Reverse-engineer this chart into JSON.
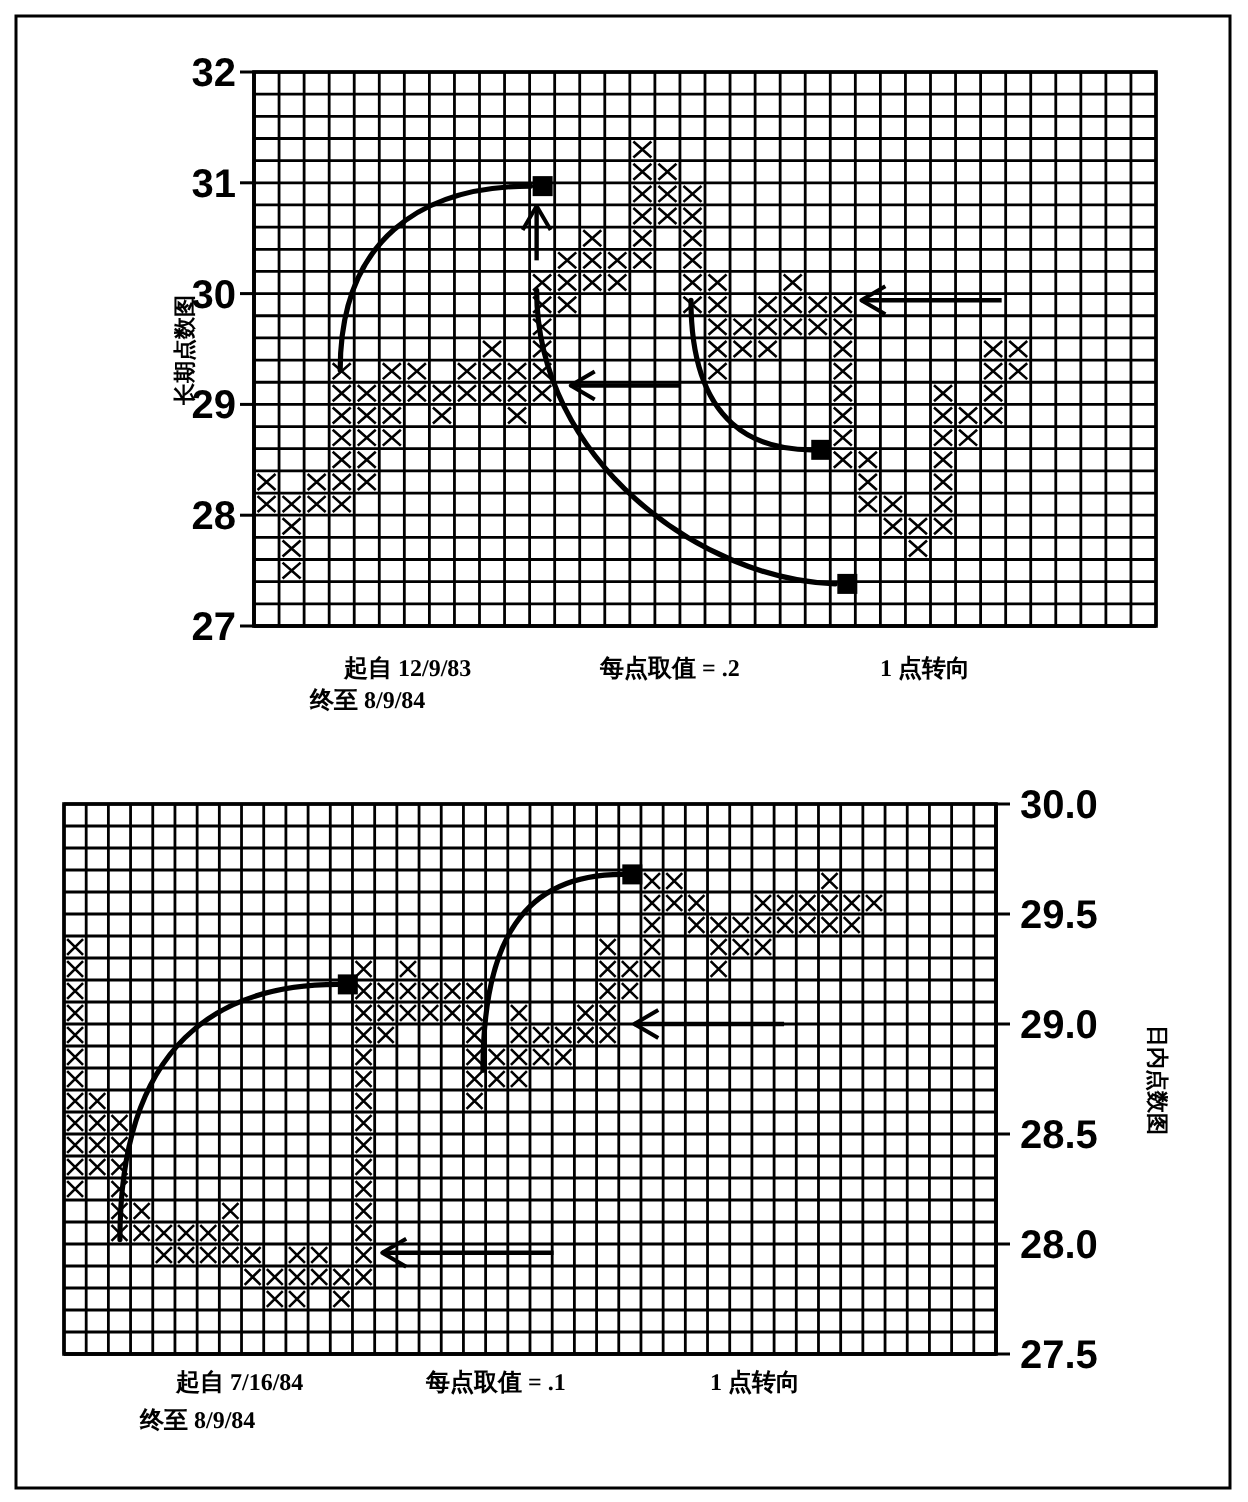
{
  "chart_data": [
    {
      "type": "scatter",
      "ylabel": "长期点数图",
      "annotations": [
        "起自 12/9/83",
        "终至 8/9/84",
        "每点取值 =  .2",
        "1 点转向"
      ],
      "marker": "cross",
      "grid": true,
      "tick_labels": "y",
      "ylim": [
        27,
        32
      ],
      "yticks": [
        27,
        28,
        29,
        30,
        31,
        32
      ],
      "categories": [
        null,
        null,
        null,
        null,
        null,
        null,
        null,
        null,
        null,
        null,
        null,
        null,
        null,
        null,
        null,
        null,
        null,
        null,
        null,
        null,
        null,
        null,
        null,
        null,
        null,
        null,
        null,
        null,
        null,
        null,
        null,
        null,
        null,
        null,
        null,
        null
      ],
      "series": [
        {
          "color": "#000000",
          "values": [
            28.3,
            28.1,
            28.3,
            29.3,
            29.1,
            29.3,
            29.3,
            29.1,
            29.3,
            29.5,
            29.3,
            30.1,
            30.3,
            30.5,
            30.3,
            31.3,
            31.1,
            30.9,
            30.1,
            29.7,
            29.9,
            30.1,
            29.9,
            29.9,
            28.5,
            28.1,
            27.9,
            29.1,
            28.9,
            29.5,
            29.5,
            null,
            null,
            null,
            null,
            null
          ]
        },
        {
          "color": "#000000",
          "values": [
            28.1,
            27.9,
            28.1,
            29.1,
            28.9,
            29.1,
            29.1,
            28.9,
            29.1,
            29.3,
            29.1,
            29.9,
            30.1,
            30.3,
            30.1,
            31.1,
            30.9,
            30.7,
            29.9,
            29.5,
            29.7,
            29.9,
            29.7,
            29.7,
            28.3,
            27.9,
            27.7,
            28.9,
            28.7,
            29.3,
            29.3,
            null,
            null,
            null,
            null,
            null
          ]
        },
        {
          "color": "#000000",
          "values": [
            null,
            27.7,
            null,
            28.9,
            28.7,
            28.9,
            null,
            null,
            null,
            29.1,
            28.9,
            29.7,
            29.9,
            30.1,
            null,
            30.9,
            30.7,
            30.5,
            29.7,
            null,
            29.5,
            29.7,
            null,
            29.5,
            28.1,
            null,
            null,
            28.7,
            null,
            29.1,
            null,
            null,
            null,
            null,
            null,
            null
          ]
        },
        {
          "color": "#000000",
          "values": [
            null,
            27.5,
            null,
            28.7,
            28.5,
            28.7,
            null,
            null,
            null,
            null,
            null,
            29.5,
            null,
            null,
            null,
            30.7,
            null,
            30.3,
            29.5,
            null,
            null,
            null,
            null,
            29.3,
            null,
            null,
            null,
            28.5,
            null,
            28.9,
            null,
            null,
            null,
            null,
            null,
            null
          ]
        },
        {
          "color": "#000000",
          "values": [
            null,
            null,
            null,
            28.5,
            28.3,
            null,
            null,
            null,
            null,
            null,
            null,
            29.3,
            null,
            null,
            null,
            30.5,
            null,
            30.1,
            29.3,
            null,
            null,
            null,
            null,
            29.1,
            null,
            null,
            null,
            28.3,
            null,
            null,
            null,
            null,
            null,
            null,
            null,
            null
          ]
        },
        {
          "color": "#000000",
          "values": [
            null,
            null,
            null,
            28.3,
            null,
            null,
            null,
            null,
            null,
            null,
            null,
            29.1,
            null,
            null,
            null,
            30.3,
            null,
            29.9,
            null,
            null,
            null,
            null,
            null,
            28.9,
            null,
            null,
            null,
            28.1,
            null,
            null,
            null,
            null,
            null,
            null,
            null,
            null
          ]
        },
        {
          "color": "#000000",
          "values": [
            null,
            null,
            null,
            28.1,
            null,
            null,
            null,
            null,
            null,
            null,
            null,
            null,
            null,
            null,
            null,
            null,
            null,
            null,
            null,
            null,
            null,
            null,
            null,
            28.7,
            null,
            null,
            null,
            27.9,
            null,
            null,
            null,
            null,
            null,
            null,
            null,
            null
          ]
        },
        {
          "color": "#000000",
          "values": [
            null,
            null,
            null,
            null,
            null,
            null,
            null,
            null,
            null,
            null,
            null,
            null,
            null,
            null,
            null,
            null,
            null,
            null,
            null,
            null,
            null,
            null,
            null,
            28.5,
            null,
            null,
            null,
            null,
            null,
            null,
            null,
            null,
            null,
            null,
            null,
            null
          ]
        }
      ]
    },
    {
      "type": "scatter",
      "ylabel": "日内点数图",
      "annotations": [
        "起自 7/16/84",
        "终至 8/9/84",
        "每点取值 = .1",
        "1 点转向"
      ],
      "marker": "cross",
      "grid": true,
      "tick_labels": "y",
      "ylim": [
        27.5,
        30
      ],
      "yticks": [
        {
          "value": 27.5,
          "label": "27.5"
        },
        {
          "value": 28,
          "label": "28.0"
        },
        {
          "value": 28.5,
          "label": "28.5"
        },
        {
          "value": 29,
          "label": "29.0"
        },
        {
          "value": 29.5,
          "label": "29.5"
        },
        {
          "value": 30,
          "label": "30.0"
        }
      ],
      "categories": [
        null,
        null,
        null,
        null,
        null,
        null,
        null,
        null,
        null,
        null,
        null,
        null,
        null,
        null,
        null,
        null,
        null,
        null,
        null,
        null,
        null,
        null,
        null,
        null,
        null,
        null,
        null,
        null,
        null,
        null,
        null,
        null,
        null,
        null,
        null,
        null,
        null,
        null,
        null,
        null,
        null,
        null
      ],
      "series": [
        {
          "color": "#000000",
          "values": [
            29.35,
            28.65,
            28.55,
            28.15,
            28.05,
            28.05,
            28.05,
            28.15,
            27.95,
            27.85,
            27.95,
            27.95,
            27.85,
            29.25,
            29.15,
            29.25,
            29.15,
            29.15,
            29.15,
            28.85,
            29.05,
            28.95,
            28.95,
            29.05,
            29.35,
            29.25,
            29.65,
            29.65,
            29.55,
            29.45,
            29.45,
            29.55,
            29.55,
            29.55,
            29.65,
            29.55,
            29.55,
            null,
            null,
            null,
            null,
            null
          ]
        },
        {
          "color": "#000000",
          "values": [
            29.25,
            28.55,
            28.45,
            28.05,
            27.95,
            27.95,
            27.95,
            28.05,
            27.85,
            27.75,
            27.85,
            27.85,
            27.75,
            29.15,
            29.05,
            29.15,
            29.05,
            29.05,
            29.05,
            28.75,
            28.95,
            28.85,
            28.85,
            28.95,
            29.25,
            29.15,
            29.55,
            29.55,
            29.45,
            29.35,
            29.35,
            29.45,
            29.45,
            29.45,
            29.55,
            29.45,
            null,
            null,
            null,
            null,
            null,
            null
          ]
        },
        {
          "color": "#000000",
          "values": [
            29.15,
            28.45,
            28.35,
            null,
            null,
            null,
            null,
            27.95,
            null,
            null,
            27.75,
            null,
            null,
            29.05,
            28.95,
            29.05,
            null,
            null,
            28.95,
            null,
            28.85,
            null,
            null,
            null,
            29.15,
            null,
            29.45,
            null,
            null,
            29.25,
            null,
            29.35,
            null,
            null,
            29.45,
            null,
            null,
            null,
            null,
            null,
            null,
            null
          ]
        },
        {
          "color": "#000000",
          "values": [
            29.05,
            28.35,
            28.25,
            null,
            null,
            null,
            null,
            null,
            null,
            null,
            null,
            null,
            null,
            28.95,
            null,
            null,
            null,
            null,
            28.85,
            null,
            28.75,
            null,
            null,
            null,
            29.05,
            null,
            29.35,
            null,
            null,
            null,
            null,
            null,
            null,
            null,
            null,
            null,
            null,
            null,
            null,
            null,
            null,
            null
          ]
        },
        {
          "color": "#000000",
          "values": [
            28.95,
            null,
            28.15,
            null,
            null,
            null,
            null,
            null,
            null,
            null,
            null,
            null,
            null,
            28.85,
            null,
            null,
            null,
            null,
            28.75,
            null,
            null,
            null,
            null,
            null,
            28.95,
            null,
            29.25,
            null,
            null,
            null,
            null,
            null,
            null,
            null,
            null,
            null,
            null,
            null,
            null,
            null,
            null,
            null
          ]
        },
        {
          "color": "#000000",
          "values": [
            28.85,
            null,
            28.05,
            null,
            null,
            null,
            null,
            null,
            null,
            null,
            null,
            null,
            null,
            28.75,
            null,
            null,
            null,
            null,
            28.65,
            null,
            null,
            null,
            null,
            null,
            null,
            null,
            null,
            null,
            null,
            null,
            null,
            null,
            null,
            null,
            null,
            null,
            null,
            null,
            null,
            null,
            null,
            null
          ]
        },
        {
          "color": "#000000",
          "values": [
            28.75,
            null,
            null,
            null,
            null,
            null,
            null,
            null,
            null,
            null,
            null,
            null,
            null,
            28.65,
            null,
            null,
            null,
            null,
            null,
            null,
            null,
            null,
            null,
            null,
            null,
            null,
            null,
            null,
            null,
            null,
            null,
            null,
            null,
            null,
            null,
            null,
            null,
            null,
            null,
            null,
            null,
            null
          ]
        },
        {
          "color": "#000000",
          "values": [
            28.65,
            null,
            null,
            null,
            null,
            null,
            null,
            null,
            null,
            null,
            null,
            null,
            null,
            28.55,
            null,
            null,
            null,
            null,
            null,
            null,
            null,
            null,
            null,
            null,
            null,
            null,
            null,
            null,
            null,
            null,
            null,
            null,
            null,
            null,
            null,
            null,
            null,
            null,
            null,
            null,
            null,
            null
          ]
        },
        {
          "color": "#000000",
          "values": [
            28.55,
            null,
            null,
            null,
            null,
            null,
            null,
            null,
            null,
            null,
            null,
            null,
            null,
            28.45,
            null,
            null,
            null,
            null,
            null,
            null,
            null,
            null,
            null,
            null,
            null,
            null,
            null,
            null,
            null,
            null,
            null,
            null,
            null,
            null,
            null,
            null,
            null,
            null,
            null,
            null,
            null,
            null
          ]
        },
        {
          "color": "#000000",
          "values": [
            28.45,
            null,
            null,
            null,
            null,
            null,
            null,
            null,
            null,
            null,
            null,
            null,
            null,
            28.35,
            null,
            null,
            null,
            null,
            null,
            null,
            null,
            null,
            null,
            null,
            null,
            null,
            null,
            null,
            null,
            null,
            null,
            null,
            null,
            null,
            null,
            null,
            null,
            null,
            null,
            null,
            null,
            null
          ]
        },
        {
          "color": "#000000",
          "values": [
            28.35,
            null,
            null,
            null,
            null,
            null,
            null,
            null,
            null,
            null,
            null,
            null,
            null,
            28.25,
            null,
            null,
            null,
            null,
            null,
            null,
            null,
            null,
            null,
            null,
            null,
            null,
            null,
            null,
            null,
            null,
            null,
            null,
            null,
            null,
            null,
            null,
            null,
            null,
            null,
            null,
            null,
            null
          ]
        },
        {
          "color": "#000000",
          "values": [
            28.25,
            null,
            null,
            null,
            null,
            null,
            null,
            null,
            null,
            null,
            null,
            null,
            null,
            28.15,
            null,
            null,
            null,
            null,
            null,
            null,
            null,
            null,
            null,
            null,
            null,
            null,
            null,
            null,
            null,
            null,
            null,
            null,
            null,
            null,
            null,
            null,
            null,
            null,
            null,
            null,
            null,
            null
          ]
        },
        {
          "color": "#000000",
          "values": [
            null,
            null,
            null,
            null,
            null,
            null,
            null,
            null,
            null,
            null,
            null,
            null,
            null,
            28.05,
            null,
            null,
            null,
            null,
            null,
            null,
            null,
            null,
            null,
            null,
            null,
            null,
            null,
            null,
            null,
            null,
            null,
            null,
            null,
            null,
            null,
            null,
            null,
            null,
            null,
            null,
            null,
            null
          ]
        },
        {
          "color": "#000000",
          "values": [
            null,
            null,
            null,
            null,
            null,
            null,
            null,
            null,
            null,
            null,
            null,
            null,
            null,
            27.95,
            null,
            null,
            null,
            null,
            null,
            null,
            null,
            null,
            null,
            null,
            null,
            null,
            null,
            null,
            null,
            null,
            null,
            null,
            null,
            null,
            null,
            null,
            null,
            null,
            null,
            null,
            null,
            null
          ]
        },
        {
          "color": "#000000",
          "values": [
            null,
            null,
            null,
            null,
            null,
            null,
            null,
            null,
            null,
            null,
            null,
            null,
            null,
            27.85,
            null,
            null,
            null,
            null,
            null,
            null,
            null,
            null,
            null,
            null,
            null,
            null,
            null,
            null,
            null,
            null,
            null,
            null,
            null,
            null,
            null,
            null,
            null,
            null,
            null,
            null,
            null,
            null
          ]
        }
      ]
    }
  ]
}
